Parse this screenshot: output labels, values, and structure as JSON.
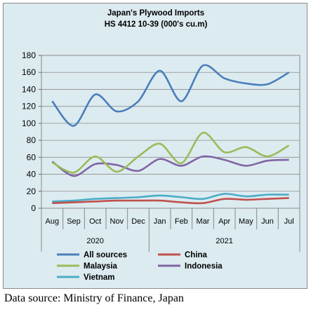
{
  "chart_data": {
    "type": "line",
    "title": "Japan's Plywood Imports",
    "subtitle": "HS 4412 10-39  (000's cu.m)",
    "categories": [
      "Aug",
      "Sep",
      "Oct",
      "Nov",
      "Dec",
      "Jan",
      "Feb",
      "Mar",
      "Apr",
      "May",
      "Jun",
      "Jul"
    ],
    "year_labels": [
      {
        "label": "2020",
        "span": [
          0,
          4
        ]
      },
      {
        "label": "2021",
        "span": [
          5,
          11
        ]
      }
    ],
    "ylim": [
      0,
      180
    ],
    "yticks": [
      0,
      20,
      40,
      60,
      80,
      100,
      120,
      140,
      160,
      180
    ],
    "grid": true,
    "legend_position": "bottom",
    "series": [
      {
        "name": "All sources",
        "color": "#4a7ebb",
        "values": [
          126,
          97,
          134,
          114,
          126,
          162,
          126,
          168,
          153,
          147,
          146,
          160
        ]
      },
      {
        "name": "China",
        "color": "#c0504d",
        "values": [
          6,
          7,
          8,
          9,
          9,
          9,
          7,
          6,
          11,
          10,
          11,
          12
        ]
      },
      {
        "name": "Malaysia",
        "color": "#9bbb59",
        "values": [
          54,
          42,
          61,
          43,
          61,
          76,
          53,
          89,
          66,
          72,
          61,
          74
        ]
      },
      {
        "name": "Indonesia",
        "color": "#8064a2",
        "values": [
          55,
          38,
          52,
          51,
          44,
          58,
          50,
          61,
          57,
          50,
          56,
          57
        ]
      },
      {
        "name": "Vietnam",
        "color": "#4bacc6",
        "values": [
          8,
          9,
          11,
          12,
          13,
          15,
          13,
          11,
          17,
          14,
          16,
          16
        ]
      }
    ]
  },
  "source_note": "Data source: Ministry of Finance, Japan"
}
